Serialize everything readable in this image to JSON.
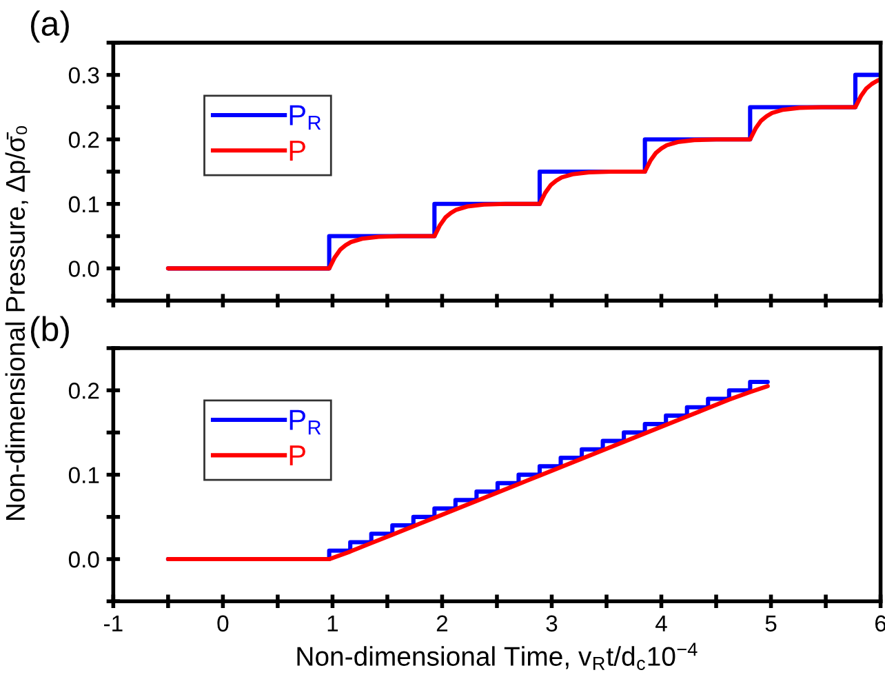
{
  "chart_data": [
    {
      "type": "step",
      "ylabel": "Non-dimensional Pressure, Δp/σ̄₀",
      "annotations": [
        "(a)"
      ],
      "xlim": [
        -1,
        6
      ],
      "xticks": [
        -1,
        {
          "value": -0.5,
          "label": null
        },
        0,
        {
          "value": 0.5,
          "label": null
        },
        1,
        {
          "value": 1.5,
          "label": null
        },
        2,
        {
          "value": 2.5,
          "label": null
        },
        3,
        {
          "value": 3.5,
          "label": null
        },
        4,
        {
          "value": 4.5,
          "label": null
        },
        5,
        {
          "value": 5.5,
          "label": null
        },
        6
      ],
      "ylim": [
        -0.05,
        0.35
      ],
      "yticks": [
        {
          "value": -0.05,
          "label": null
        },
        {
          "value": 0,
          "label": "0.0"
        },
        {
          "value": 0.05,
          "label": null
        },
        0.1,
        {
          "value": 0.15,
          "label": null
        },
        0.2,
        {
          "value": 0.25,
          "label": null
        },
        0.3,
        {
          "value": 0.35,
          "label": null
        }
      ],
      "tick_labels": "y",
      "legend": "top left",
      "grid": false,
      "series": [
        {
          "name": "P$_{R}$",
          "color": "#0000ff",
          "x": [
            -0.5,
            0.97,
            1.93,
            2.89,
            3.85,
            4.81,
            5.77,
            6.0
          ],
          "values": [
            0,
            0.05,
            0.1,
            0.15,
            0.2,
            0.25,
            0.3,
            0.3
          ]
        },
        {
          "name": "P",
          "color": "#ff0000",
          "type": "line",
          "x": [
            -0.5,
            0.97,
            1.02,
            1.07,
            1.12,
            1.17,
            1.27,
            1.42,
            1.62,
            1.93,
            1.98,
            2.03,
            2.08,
            2.13,
            2.23,
            2.38,
            2.58,
            2.89,
            2.94,
            2.99,
            3.04,
            3.09,
            3.19,
            3.34,
            3.54,
            3.85,
            3.9,
            3.95,
            4.0,
            4.05,
            4.15,
            4.3,
            4.5,
            4.81,
            4.86,
            4.91,
            4.96,
            5.01,
            5.11,
            5.26,
            5.46,
            5.77,
            5.82,
            5.87,
            5.92,
            5.97,
            6.0
          ],
          "values": [
            0,
            0,
            0.017,
            0.029,
            0.036,
            0.041,
            0.046,
            0.049,
            0.05,
            0.05,
            0.067,
            0.079,
            0.086,
            0.091,
            0.096,
            0.099,
            0.1,
            0.1,
            0.117,
            0.129,
            0.136,
            0.141,
            0.146,
            0.149,
            0.15,
            0.15,
            0.167,
            0.179,
            0.186,
            0.191,
            0.196,
            0.199,
            0.2,
            0.2,
            0.217,
            0.229,
            0.236,
            0.241,
            0.246,
            0.249,
            0.25,
            0.25,
            0.267,
            0.279,
            0.286,
            0.291,
            0.293
          ]
        }
      ]
    },
    {
      "type": "step",
      "xlabel": "Non-dimensional Time, v$_{R}$t/d$_{c}$10$^{−4}$",
      "annotations": [
        "(b)"
      ],
      "xlim": [
        -1,
        6
      ],
      "xticks": [
        -1,
        {
          "value": -0.5,
          "label": null
        },
        0,
        {
          "value": 0.5,
          "label": null
        },
        1,
        {
          "value": 1.5,
          "label": null
        },
        2,
        {
          "value": 2.5,
          "label": null
        },
        3,
        {
          "value": 3.5,
          "label": null
        },
        4,
        {
          "value": 4.5,
          "label": null
        },
        5,
        {
          "value": 5.5,
          "label": null
        },
        6
      ],
      "ylim": [
        -0.05,
        0.25
      ],
      "yticks": [
        {
          "value": -0.05,
          "label": null
        },
        {
          "value": 0,
          "label": "0.0"
        },
        {
          "value": 0.05,
          "label": null
        },
        0.1,
        {
          "value": 0.15,
          "label": null
        },
        0.2,
        {
          "value": 0.25,
          "label": null
        }
      ],
      "legend": "top left",
      "grid": false,
      "series": [
        {
          "name": "P$_{R}$",
          "color": "#0000ff",
          "x": [
            -0.5,
            0.97,
            1.162,
            1.354,
            1.546,
            1.738,
            1.93,
            2.122,
            2.314,
            2.506,
            2.698,
            2.89,
            3.082,
            3.274,
            3.466,
            3.658,
            3.85,
            4.042,
            4.234,
            4.426,
            4.618,
            4.81,
            4.97
          ],
          "values": [
            0,
            0.01,
            0.02,
            0.03,
            0.04,
            0.05,
            0.06,
            0.07,
            0.08,
            0.09,
            0.1,
            0.11,
            0.12,
            0.13,
            0.14,
            0.15,
            0.16,
            0.17,
            0.18,
            0.19,
            0.2,
            0.21,
            0.21
          ]
        },
        {
          "name": "P",
          "color": "#ff0000",
          "type": "line",
          "x": [
            -0.5,
            0.97,
            1.162,
            1.354,
            1.546,
            1.738,
            1.93,
            2.122,
            2.314,
            2.506,
            2.698,
            2.89,
            3.082,
            3.274,
            3.466,
            3.658,
            3.85,
            4.042,
            4.234,
            4.426,
            4.618,
            4.81,
            4.97
          ],
          "values": [
            0,
            0,
            0.009,
            0.019,
            0.029,
            0.039,
            0.049,
            0.059,
            0.069,
            0.079,
            0.089,
            0.099,
            0.109,
            0.119,
            0.129,
            0.139,
            0.149,
            0.159,
            0.169,
            0.179,
            0.189,
            0.198,
            0.205
          ]
        }
      ]
    }
  ]
}
